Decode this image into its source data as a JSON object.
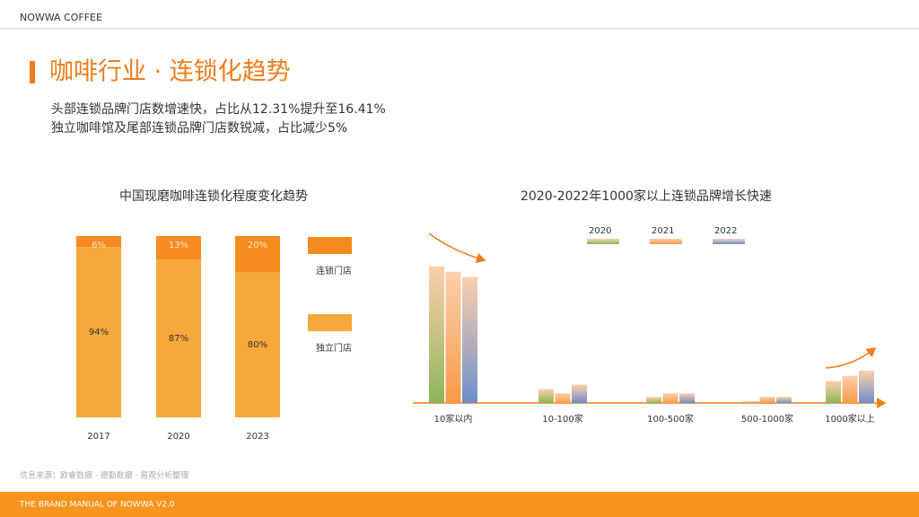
{
  "brand": "NOWWA COFFEE",
  "title": "咖啡行业 · 连锁化趋势",
  "subtitle": [
    "头部连锁品牌门店数增速快，占比从12.31%提升至16.41%",
    "独立咖啡馆及尾部连锁品牌门店数锐减，占比减少5%"
  ],
  "source": "信息来源：欧睿数据 · 德勤数据 · 易观分析整理",
  "footer": "THE BRAND  MANUAL  OF NOWWA V2.0",
  "chart_data": [
    {
      "type": "stacked-bar",
      "title": "中国现磨咖啡连锁化程度变化趋势",
      "categories": [
        "2017",
        "2020",
        "2023"
      ],
      "ylim": [
        0,
        100
      ],
      "series": [
        {
          "name": "连锁门店",
          "color": "#f58a1f",
          "values": [
            6,
            13,
            20
          ],
          "value_labels": [
            "6%",
            "13%",
            "20%"
          ]
        },
        {
          "name": "独立门店",
          "color": "#f7a83a",
          "values": [
            94,
            87,
            80
          ],
          "value_labels": [
            "94%",
            "87%",
            "80%"
          ]
        }
      ]
    },
    {
      "type": "grouped-bar",
      "title": "2020-2022年1000家以上连锁品牌增长快速",
      "categories": [
        "10家以内",
        "10-100家",
        "100-500家",
        "500-1000家",
        "1000家以上"
      ],
      "ylim": [
        0,
        160
      ],
      "series": [
        {
          "name": "2020",
          "color": "#8bb65a",
          "values": [
            156,
            16,
            7,
            2,
            25
          ]
        },
        {
          "name": "2021",
          "color": "#f79a45",
          "values": [
            150,
            11,
            11,
            7,
            31
          ]
        },
        {
          "name": "2022",
          "color": "#6b8dcc",
          "values": [
            144,
            21,
            11,
            7,
            37
          ]
        }
      ]
    }
  ]
}
